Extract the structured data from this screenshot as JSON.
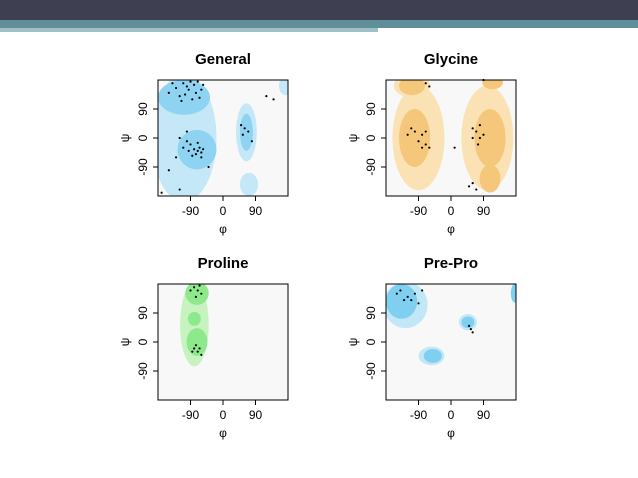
{
  "chart_data": [
    {
      "type": "scatter",
      "title": "General",
      "xlabel": "φ",
      "ylabel": "ψ",
      "color": "#000000",
      "xlim": [
        -180,
        180
      ],
      "ylim": [
        -180,
        180
      ],
      "xticks": [
        -90,
        0,
        90
      ],
      "yticks": [
        -90,
        0,
        90
      ],
      "x": [
        -110,
        -100,
        -95,
        -80,
        -75,
        -120,
        -130,
        -70,
        -85,
        -60,
        -140,
        -105,
        -90,
        -65,
        -115,
        -150,
        -55,
        -70,
        -65,
        -60,
        -80,
        -75,
        -90,
        -100,
        -55,
        -85,
        -95,
        -110,
        -120,
        -100,
        -130,
        -70,
        -60,
        50,
        60,
        70,
        55,
        80,
        120,
        140,
        -150,
        -40,
        -120,
        -170
      ],
      "values": [
        170,
        160,
        150,
        165,
        140,
        130,
        155,
        175,
        120,
        150,
        170,
        135,
        175,
        125,
        115,
        140,
        165,
        -40,
        -30,
        -45,
        -35,
        -50,
        -20,
        -10,
        -35,
        -55,
        -40,
        -30,
        0,
        20,
        -60,
        -15,
        -60,
        40,
        30,
        20,
        10,
        -10,
        130,
        120,
        -100,
        -90,
        -160,
        -170
      ]
    },
    {
      "type": "scatter",
      "title": "Glycine",
      "xlabel": "φ",
      "ylabel": "ψ",
      "color": "#000000",
      "xlim": [
        -180,
        180
      ],
      "ylim": [
        -180,
        180
      ],
      "xticks": [
        -90,
        0,
        90
      ],
      "yticks": [
        -90,
        0,
        90
      ],
      "x": [
        -70,
        -60,
        90,
        -110,
        -100,
        -80,
        -70,
        -90,
        -70,
        -60,
        -80,
        -120,
        60,
        70,
        80,
        90,
        60,
        75,
        80,
        10,
        50,
        70,
        60
      ],
      "values": [
        170,
        160,
        180,
        30,
        20,
        10,
        20,
        -10,
        -20,
        -30,
        -30,
        10,
        30,
        20,
        0,
        10,
        0,
        -20,
        40,
        -30,
        -150,
        -160,
        -140
      ]
    },
    {
      "type": "scatter",
      "title": "Proline",
      "xlabel": "φ",
      "ylabel": "ψ",
      "color": "#000000",
      "xlim": [
        -180,
        180
      ],
      "ylim": [
        -180,
        180
      ],
      "xticks": [
        -90,
        0,
        90
      ],
      "yticks": [
        -90,
        0,
        90
      ],
      "x": [
        -80,
        -70,
        -60,
        -75,
        -65,
        -90,
        -80,
        -70,
        -60,
        -75,
        -85,
        -65
      ],
      "values": [
        170,
        160,
        150,
        140,
        175,
        160,
        -20,
        -30,
        -40,
        -10,
        -30,
        -20
      ]
    },
    {
      "type": "scatter",
      "title": "Pre-Pro",
      "xlabel": "φ",
      "ylabel": "ψ",
      "color": "#000000",
      "xlim": [
        -180,
        180
      ],
      "ylim": [
        -180,
        180
      ],
      "xticks": [
        -90,
        0,
        90
      ],
      "yticks": [
        -90,
        0,
        90
      ],
      "x": [
        -140,
        -120,
        -100,
        -110,
        -130,
        -80,
        -90,
        -150,
        55,
        60,
        50
      ],
      "values": [
        160,
        140,
        150,
        130,
        130,
        160,
        120,
        150,
        40,
        30,
        50
      ]
    }
  ]
}
